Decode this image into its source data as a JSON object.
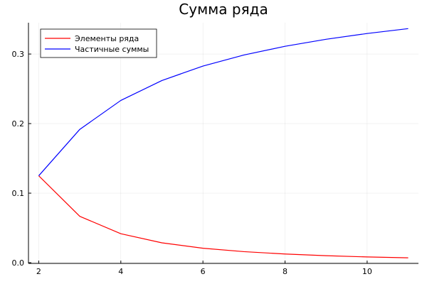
{
  "chart_data": {
    "type": "line",
    "title": "Сумма ряда",
    "xlabel": "",
    "ylabel": "",
    "xlim": [
      1.75,
      11.25
    ],
    "ylim": [
      -0.001,
      0.345
    ],
    "x_ticks": [
      2,
      4,
      6,
      8,
      10
    ],
    "y_ticks": [
      0.0,
      0.1,
      0.2,
      0.3
    ],
    "x_tick_labels": [
      "2",
      "4",
      "6",
      "8",
      "10"
    ],
    "y_tick_labels": [
      "0.0",
      "0.1",
      "0.2",
      "0.3"
    ],
    "grid": true,
    "legend_position": "top-left",
    "x": [
      2,
      3,
      4,
      5,
      6,
      7,
      8,
      9,
      10,
      11
    ],
    "series": [
      {
        "name": "Элементы ряда",
        "color": "#ff0000",
        "values": [
          0.125,
          0.0667,
          0.0417,
          0.0286,
          0.0208,
          0.0159,
          0.0125,
          0.0101,
          0.0083,
          0.007
        ]
      },
      {
        "name": "Частичные суммы",
        "color": "#0000ff",
        "values": [
          0.125,
          0.1917,
          0.2333,
          0.2619,
          0.2827,
          0.2986,
          0.3111,
          0.3212,
          0.3295,
          0.3365
        ]
      }
    ]
  }
}
